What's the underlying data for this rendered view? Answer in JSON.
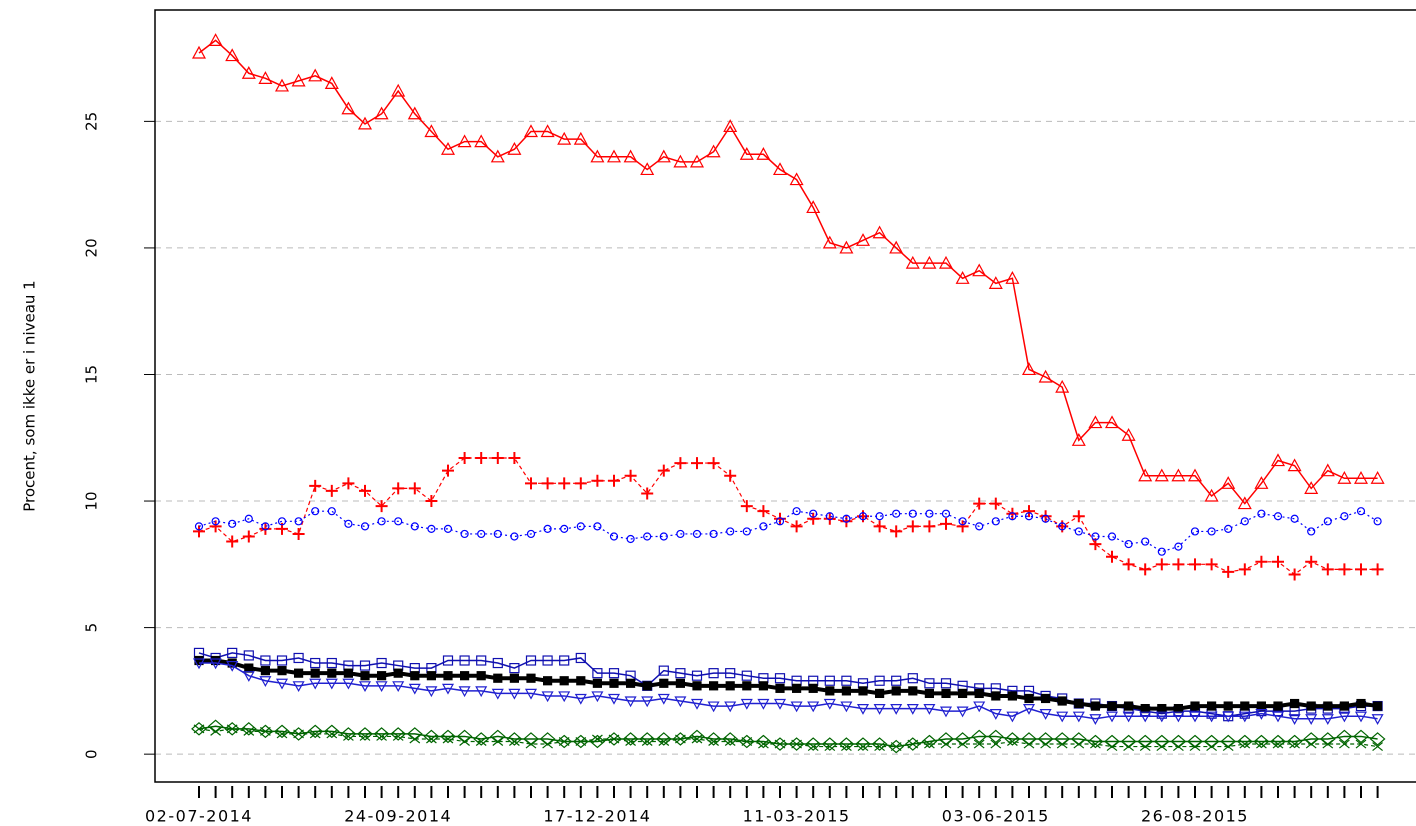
{
  "chart_data": {
    "type": "line",
    "ylabel": "Procent, som ikke er i niveau 1",
    "categories": [
      "02-07-2014",
      null,
      null,
      null,
      null,
      null,
      null,
      null,
      null,
      null,
      null,
      null,
      "24-09-2014",
      null,
      null,
      null,
      null,
      null,
      null,
      null,
      null,
      null,
      null,
      null,
      "17-12-2014",
      null,
      null,
      null,
      null,
      null,
      null,
      null,
      null,
      null,
      null,
      null,
      "11-03-2015",
      null,
      null,
      null,
      null,
      null,
      null,
      null,
      null,
      null,
      null,
      null,
      "03-06-2015",
      null,
      null,
      null,
      null,
      null,
      null,
      null,
      null,
      null,
      null,
      null,
      "26-08-2015",
      null,
      null,
      null,
      null,
      null,
      null,
      null,
      null,
      null,
      null,
      null
    ],
    "ylim": [
      -1.1,
      29.4
    ],
    "yticks": [
      0,
      5,
      10,
      15,
      20,
      25
    ],
    "grid": true,
    "series": [
      {
        "color": "#ff0000",
        "marker": "triangle",
        "dash": "solid",
        "values": [
          27.7,
          28.2,
          27.6,
          26.9,
          26.7,
          26.4,
          26.6,
          26.8,
          26.5,
          25.5,
          24.9,
          25.3,
          26.2,
          25.3,
          24.6,
          23.9,
          24.2,
          24.2,
          23.6,
          23.9,
          24.6,
          24.6,
          24.3,
          24.3,
          23.6,
          23.6,
          23.6,
          23.1,
          23.6,
          23.4,
          23.4,
          23.8,
          24.8,
          23.7,
          23.7,
          23.1,
          22.7,
          21.6,
          20.2,
          20.0,
          20.3,
          20.6,
          20.0,
          19.4,
          19.4,
          19.4,
          18.8,
          19.1,
          18.6,
          18.8,
          15.2,
          14.9,
          14.5,
          12.4,
          13.1,
          13.1,
          12.6,
          11.0,
          11.0,
          11.0,
          11.0,
          10.2,
          10.7,
          9.9,
          10.7,
          11.6,
          11.4,
          10.5,
          11.2,
          10.9,
          10.9,
          10.9
        ]
      },
      {
        "color": "#ff0000",
        "marker": "plus",
        "dash": "dashed",
        "values": [
          8.8,
          9.0,
          8.4,
          8.6,
          8.9,
          8.9,
          8.7,
          10.6,
          10.4,
          10.7,
          10.4,
          9.8,
          10.5,
          10.5,
          10.0,
          11.2,
          11.7,
          11.7,
          11.7,
          11.7,
          10.7,
          10.7,
          10.7,
          10.7,
          10.8,
          10.8,
          11.0,
          10.3,
          11.2,
          11.5,
          11.5,
          11.5,
          11.0,
          9.8,
          9.6,
          9.3,
          9.0,
          9.3,
          9.3,
          9.2,
          9.4,
          9.0,
          8.8,
          9.0,
          9.0,
          9.1,
          9.0,
          9.9,
          9.9,
          9.5,
          9.6,
          9.4,
          9.0,
          9.4,
          8.3,
          7.8,
          7.5,
          7.3,
          7.5,
          7.5,
          7.5,
          7.5,
          7.2,
          7.3,
          7.6,
          7.6,
          7.1,
          7.6,
          7.3,
          7.3,
          7.3,
          7.3
        ]
      },
      {
        "color": "#0000ff",
        "marker": "circle",
        "dash": "dotted",
        "values": [
          9.0,
          9.2,
          9.1,
          9.3,
          9.0,
          9.2,
          9.2,
          9.6,
          9.6,
          9.1,
          9.0,
          9.2,
          9.2,
          9.0,
          8.9,
          8.9,
          8.7,
          8.7,
          8.7,
          8.6,
          8.7,
          8.9,
          8.9,
          9.0,
          9.0,
          8.6,
          8.5,
          8.6,
          8.6,
          8.7,
          8.7,
          8.7,
          8.8,
          8.8,
          9.0,
          9.2,
          9.6,
          9.5,
          9.4,
          9.3,
          9.4,
          9.4,
          9.5,
          9.5,
          9.5,
          9.5,
          9.2,
          9.0,
          9.2,
          9.4,
          9.4,
          9.3,
          9.0,
          8.8,
          8.6,
          8.6,
          8.3,
          8.4,
          8.0,
          8.2,
          8.8,
          8.8,
          8.9,
          9.2,
          9.5,
          9.4,
          9.3,
          8.8,
          9.2,
          9.4,
          9.6,
          9.2
        ]
      },
      {
        "color": "#1010b0",
        "marker": "square",
        "dash": "solid",
        "values": [
          4.0,
          3.8,
          4.0,
          3.9,
          3.7,
          3.7,
          3.8,
          3.6,
          3.6,
          3.5,
          3.5,
          3.6,
          3.5,
          3.4,
          3.4,
          3.7,
          3.7,
          3.7,
          3.6,
          3.4,
          3.7,
          3.7,
          3.7,
          3.8,
          3.2,
          3.2,
          3.1,
          2.7,
          3.3,
          3.2,
          3.1,
          3.2,
          3.2,
          3.1,
          3.0,
          3.0,
          2.9,
          2.9,
          2.9,
          2.9,
          2.8,
          2.9,
          2.9,
          3.0,
          2.8,
          2.8,
          2.7,
          2.6,
          2.6,
          2.5,
          2.5,
          2.3,
          2.2,
          2.0,
          2.0,
          1.9,
          1.8,
          1.7,
          1.6,
          1.7,
          1.7,
          1.6,
          1.5,
          1.6,
          1.7,
          1.7,
          1.7,
          1.8,
          1.8,
          1.8,
          1.9,
          1.9
        ]
      },
      {
        "color": "#000000",
        "marker": "filled-square",
        "dash": "thick",
        "values": [
          3.7,
          3.7,
          3.6,
          3.4,
          3.3,
          3.3,
          3.2,
          3.2,
          3.2,
          3.2,
          3.1,
          3.1,
          3.2,
          3.1,
          3.1,
          3.1,
          3.1,
          3.1,
          3.0,
          3.0,
          3.0,
          2.9,
          2.9,
          2.9,
          2.8,
          2.8,
          2.8,
          2.7,
          2.8,
          2.8,
          2.7,
          2.7,
          2.7,
          2.7,
          2.7,
          2.6,
          2.6,
          2.6,
          2.5,
          2.5,
          2.5,
          2.4,
          2.5,
          2.5,
          2.4,
          2.4,
          2.4,
          2.4,
          2.3,
          2.3,
          2.2,
          2.2,
          2.1,
          2.0,
          1.9,
          1.9,
          1.9,
          1.8,
          1.8,
          1.8,
          1.9,
          1.9,
          1.9,
          1.9,
          1.9,
          1.9,
          2.0,
          1.9,
          1.9,
          1.9,
          2.0,
          1.9
        ]
      },
      {
        "color": "#2020d0",
        "marker": "down-triangle",
        "dash": "solid",
        "values": [
          3.6,
          3.6,
          3.5,
          3.1,
          2.9,
          2.8,
          2.7,
          2.8,
          2.8,
          2.8,
          2.7,
          2.7,
          2.7,
          2.6,
          2.5,
          2.6,
          2.5,
          2.5,
          2.4,
          2.4,
          2.4,
          2.3,
          2.3,
          2.2,
          2.3,
          2.2,
          2.1,
          2.1,
          2.2,
          2.1,
          2.0,
          1.9,
          1.9,
          2.0,
          2.0,
          2.0,
          1.9,
          1.9,
          2.0,
          1.9,
          1.8,
          1.8,
          1.8,
          1.8,
          1.8,
          1.7,
          1.7,
          1.9,
          1.6,
          1.5,
          1.8,
          1.6,
          1.5,
          1.5,
          1.4,
          1.5,
          1.5,
          1.5,
          1.5,
          1.5,
          1.5,
          1.5,
          1.5,
          1.5,
          1.6,
          1.5,
          1.4,
          1.4,
          1.4,
          1.5,
          1.5,
          1.4
        ]
      },
      {
        "color": "#006400",
        "marker": "diamond",
        "dash": "solid",
        "values": [
          1.0,
          1.1,
          1.0,
          1.0,
          0.9,
          0.9,
          0.8,
          0.9,
          0.9,
          0.8,
          0.8,
          0.8,
          0.8,
          0.8,
          0.7,
          0.7,
          0.7,
          0.6,
          0.7,
          0.6,
          0.6,
          0.6,
          0.5,
          0.5,
          0.5,
          0.6,
          0.6,
          0.6,
          0.6,
          0.6,
          0.7,
          0.6,
          0.6,
          0.5,
          0.5,
          0.4,
          0.4,
          0.4,
          0.4,
          0.4,
          0.4,
          0.4,
          0.3,
          0.4,
          0.5,
          0.6,
          0.6,
          0.7,
          0.7,
          0.6,
          0.6,
          0.6,
          0.6,
          0.6,
          0.5,
          0.5,
          0.5,
          0.5,
          0.5,
          0.5,
          0.5,
          0.5,
          0.5,
          0.5,
          0.5,
          0.5,
          0.5,
          0.6,
          0.6,
          0.7,
          0.7,
          0.6
        ]
      },
      {
        "color": "#006400",
        "marker": "x",
        "dash": "dashed",
        "values": [
          1.0,
          0.9,
          1.0,
          0.9,
          0.9,
          0.8,
          0.8,
          0.8,
          0.8,
          0.7,
          0.7,
          0.7,
          0.7,
          0.6,
          0.6,
          0.6,
          0.5,
          0.5,
          0.5,
          0.5,
          0.4,
          0.4,
          0.5,
          0.5,
          0.6,
          0.6,
          0.5,
          0.5,
          0.5,
          0.6,
          0.6,
          0.5,
          0.5,
          0.5,
          0.4,
          0.4,
          0.4,
          0.3,
          0.3,
          0.3,
          0.3,
          0.3,
          0.3,
          0.4,
          0.4,
          0.4,
          0.4,
          0.4,
          0.4,
          0.5,
          0.4,
          0.4,
          0.4,
          0.4,
          0.4,
          0.3,
          0.3,
          0.3,
          0.3,
          0.3,
          0.3,
          0.3,
          0.3,
          0.4,
          0.4,
          0.4,
          0.4,
          0.4,
          0.4,
          0.4,
          0.4,
          0.3
        ]
      }
    ]
  }
}
